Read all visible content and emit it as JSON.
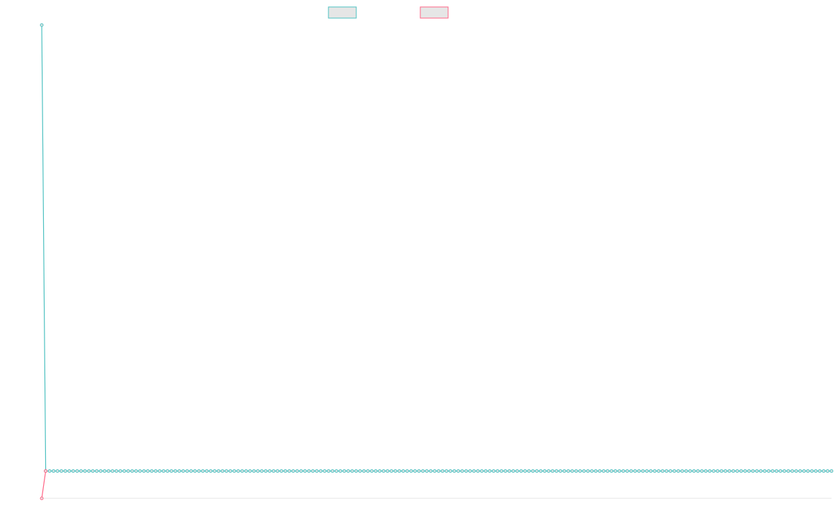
{
  "chart_data": {
    "type": "line",
    "title": "",
    "xlabel": "",
    "ylabel": "",
    "legend_position": "top",
    "grid": false,
    "colors": {
      "teal": "#4bc0c0",
      "pink": "#ff6384",
      "legend_fill": "#e6e6e6",
      "axis": "#e5e5e5"
    },
    "series": [
      {
        "name": "",
        "color": "#4bc0c0",
        "values": [
          1,
          0.0577,
          0.0577,
          0.0577,
          0.0577,
          0.0577,
          0.0577,
          0.0577,
          0.0577,
          0.0577,
          0.0577,
          0.0577,
          0.0577,
          0.0577,
          0.0577,
          0.0577,
          0.0577,
          0.0577,
          0.0577,
          0.0577,
          0.0577,
          0.0577,
          0.0577,
          0.0577,
          0.0577,
          0.0577,
          0.0577,
          0.0577,
          0.0577,
          0.0577,
          0.0577,
          0.0577,
          0.0577,
          0.0577,
          0.0577,
          0.0577,
          0.0577,
          0.0577,
          0.0577,
          0.0577,
          0.0577,
          0.0577,
          0.0577,
          0.0577,
          0.0577,
          0.0577,
          0.0577,
          0.0577,
          0.0577,
          0.0577,
          0.0577,
          0.0577,
          0.0577,
          0.0577,
          0.0577,
          0.0577,
          0.0577,
          0.0577,
          0.0577,
          0.0577,
          0.0577,
          0.0577,
          0.0577,
          0.0577,
          0.0577,
          0.0577,
          0.0577,
          0.0577,
          0.0577,
          0.0577,
          0.0577,
          0.0577,
          0.0577,
          0.0577,
          0.0577,
          0.0577,
          0.0577,
          0.0577,
          0.0577,
          0.0577,
          0.0577,
          0.0577,
          0.0577,
          0.0577,
          0.0577,
          0.0577,
          0.0577,
          0.0577,
          0.0577,
          0.0577,
          0.0577,
          0.0577,
          0.0577,
          0.0577,
          0.0577,
          0.0577,
          0.0577,
          0.0577,
          0.0577,
          0.0577,
          0.0577,
          0.0577,
          0.0577,
          0.0577,
          0.0577,
          0.0577,
          0.0577,
          0.0577,
          0.0577,
          0.0577,
          0.0577,
          0.0577,
          0.0577,
          0.0577,
          0.0577,
          0.0577,
          0.0577,
          0.0577,
          0.0577,
          0.0577,
          0.0577,
          0.0577,
          0.0577,
          0.0577,
          0.0577,
          0.0577,
          0.0577,
          0.0577,
          0.0577,
          0.0577,
          0.0577,
          0.0577,
          0.0577,
          0.0577,
          0.0577,
          0.0577,
          0.0577,
          0.0577,
          0.0577,
          0.0577,
          0.0577,
          0.0577,
          0.0577,
          0.0577,
          0.0577,
          0.0577,
          0.0577,
          0.0577,
          0.0577,
          0.0577,
          0.0577,
          0.0577,
          0.0577,
          0.0577,
          0.0577,
          0.0577,
          0.0577,
          0.0577,
          0.0577,
          0.0577,
          0.0577,
          0.0577,
          0.0577,
          0.0577,
          0.0577,
          0.0577,
          0.0577,
          0.0577,
          0.0577,
          0.0577,
          0.0577,
          0.0577,
          0.0577,
          0.0577,
          0.0577,
          0.0577,
          0.0577,
          0.0577,
          0.0577,
          0.0577,
          0.0577,
          0.0577,
          0.0577,
          0.0577,
          0.0577,
          0.0577,
          0.0577,
          0.0577,
          0.0577,
          0.0577,
          0.0577,
          0.0577,
          0.0577,
          0.0577,
          0.0577,
          0.0577,
          0.0577,
          0.0577,
          0.0577,
          0.0577,
          0.0577,
          0.0577
        ]
      },
      {
        "name": "",
        "color": "#ff6384",
        "values": [
          0,
          0.0577
        ]
      }
    ]
  }
}
